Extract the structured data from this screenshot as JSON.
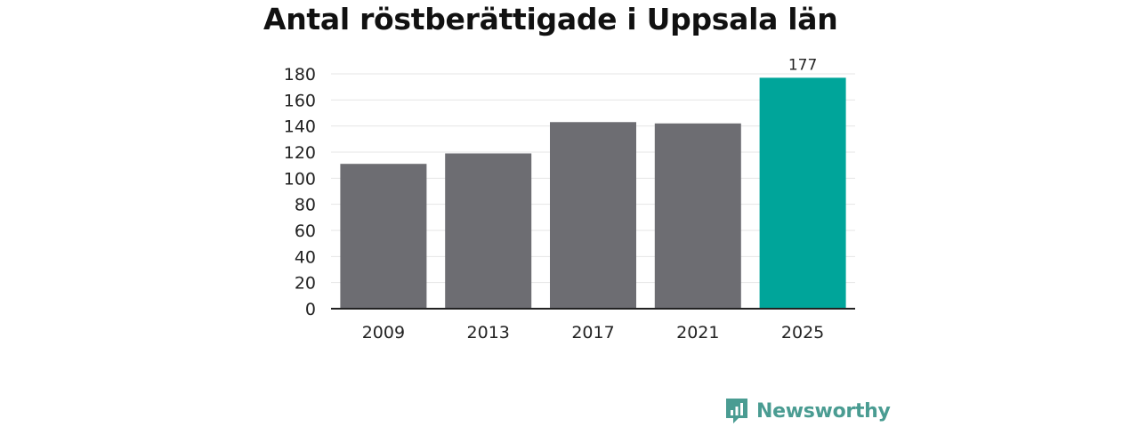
{
  "title": "Antal röstberättigade i Uppsala län",
  "chart_data": {
    "type": "bar",
    "title": "Antal röstberättigade i Uppsala län",
    "xlabel": "",
    "ylabel": "",
    "categories": [
      "2009",
      "2013",
      "2017",
      "2021",
      "2025"
    ],
    "values": [
      111,
      119,
      143,
      142,
      177
    ],
    "highlight_index": 4,
    "data_labels": [
      "",
      "",
      "",
      "",
      "177"
    ],
    "yticks": [
      0,
      20,
      40,
      60,
      80,
      100,
      120,
      140,
      160,
      180
    ],
    "ylim": [
      0,
      180
    ],
    "grid": true,
    "legend": "none",
    "colors": {
      "bar": "#6d6d72",
      "highlight": "#00a59a",
      "grid": "#e6e6e6",
      "axis": "#222222"
    }
  },
  "brand": {
    "name": "Newsworthy",
    "logo_icon": "newsworthy-bar-chart-icon",
    "color": "#4a9c92"
  }
}
